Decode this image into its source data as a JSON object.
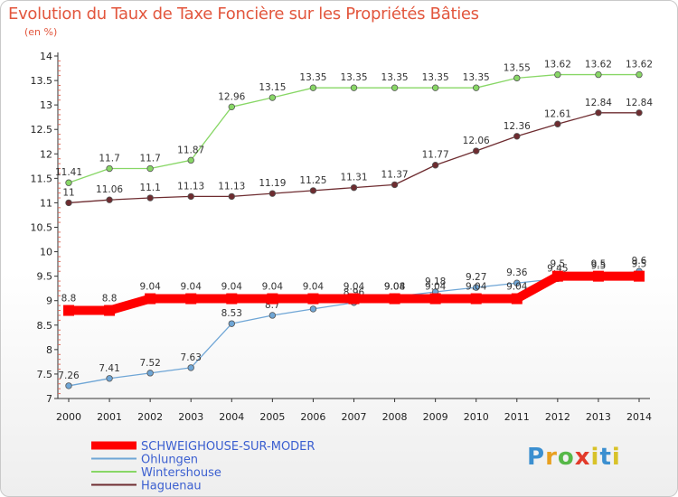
{
  "chart_data": {
    "type": "line",
    "title": "Evolution du Taux de Taxe Foncière sur les Propriétés Bâties",
    "subtitle": "(en %)",
    "categories": [
      "2000",
      "2001",
      "2002",
      "2003",
      "2004",
      "2005",
      "2006",
      "2007",
      "2008",
      "2009",
      "2010",
      "2011",
      "2012",
      "2013",
      "2014"
    ],
    "ylim": [
      7,
      14
    ],
    "yticks": [
      "7",
      "7.5",
      "8",
      "8.5",
      "9",
      "9.5",
      "10",
      "10.5",
      "11",
      "11.5",
      "12",
      "12.5",
      "13",
      "13.5",
      "14"
    ],
    "grid": false,
    "legend_position": "bottom-left",
    "series": [
      {
        "name": "Wintershouse",
        "color": "#88d766",
        "values": [
          11.41,
          11.7,
          11.7,
          11.87,
          12.96,
          13.15,
          13.35,
          13.35,
          13.35,
          13.35,
          13.35,
          13.55,
          13.62,
          13.62,
          13.62
        ],
        "labels": [
          "11.41",
          "11.7",
          "11.7",
          "11.87",
          "12.96",
          "13.15",
          "13.35",
          "13.35",
          "13.35",
          "13.35",
          "13.35",
          "13.55",
          "13.62",
          "13.62",
          "13.62"
        ]
      },
      {
        "name": "Haguenau",
        "color": "#6e2c30",
        "values": [
          11,
          11.06,
          11.1,
          11.13,
          11.13,
          11.19,
          11.25,
          11.31,
          11.37,
          11.77,
          12.06,
          12.36,
          12.61,
          12.84,
          12.84
        ],
        "labels": [
          "11",
          "11.06",
          "11.1",
          "11.13",
          "11.13",
          "11.19",
          "11.25",
          "11.31",
          "11.37",
          "11.77",
          "12.06",
          "12.36",
          "12.61",
          "12.84",
          "12.84"
        ]
      },
      {
        "name": "Ohlungen",
        "color": "#6fa6d6",
        "values": [
          7.26,
          7.41,
          7.52,
          7.63,
          8.53,
          8.7,
          8.83,
          8.96,
          9.08,
          9.18,
          9.27,
          9.36,
          9.45,
          9.5,
          9.6
        ],
        "labels": [
          "7.26",
          "7.41",
          "7.52",
          "7.63",
          "8.53",
          "8.7",
          "8.83",
          "8.96",
          "9.08",
          "9.18",
          "9.27",
          "9.36",
          "9.45",
          "9.5",
          "9.6"
        ]
      },
      {
        "name": "SCHWEIGHOUSE-SUR-MODER",
        "color": "#ff0000",
        "values": [
          8.8,
          8.8,
          9.04,
          9.04,
          9.04,
          9.04,
          9.04,
          9.04,
          9.04,
          9.04,
          9.04,
          9.04,
          9.5,
          9.5,
          9.5
        ],
        "labels": [
          "8.8",
          "8.8",
          "9.04",
          "9.04",
          "9.04",
          "9.04",
          "9.04",
          "9.04",
          "9.04",
          "9.04",
          "9.04",
          "9.04",
          "9.5",
          "9.5",
          "9.5"
        ]
      }
    ]
  },
  "legend": [
    {
      "name": "SCHWEIGHOUSE-SUR-MODER",
      "color": "#ff0000",
      "text_color": "#3b5fd0"
    },
    {
      "name": "Ohlungen",
      "color": "#6fa6d6",
      "text_color": "#3b5fd0"
    },
    {
      "name": "Wintershouse",
      "color": "#88d766",
      "text_color": "#3b5fd0"
    },
    {
      "name": "Haguenau",
      "color": "#6e2c30",
      "text_color": "#3b5fd0"
    }
  ],
  "logo": {
    "p": "P",
    "r": "r",
    "o": "o",
    "x": "x",
    "i": "i",
    "t": "t",
    "i2": "i"
  }
}
